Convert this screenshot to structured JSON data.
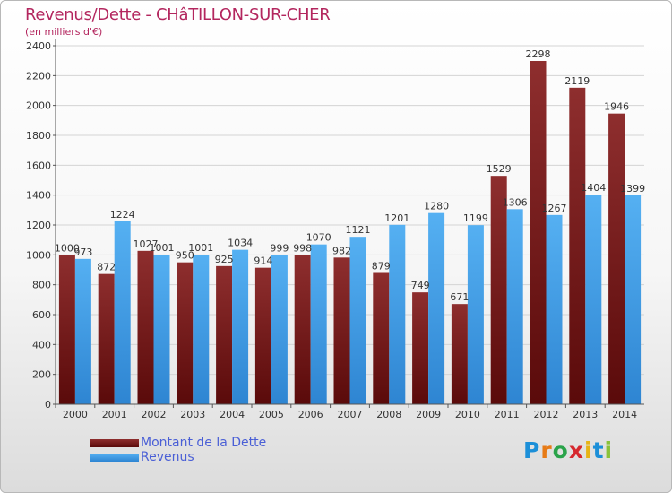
{
  "chart_data": {
    "type": "bar",
    "title": "Revenus/Dette - CHâTILLON-SUR-CHER",
    "subtitle": "(en milliers d'€)",
    "xlabel": "",
    "ylabel": "",
    "ylim": [
      0,
      2400
    ],
    "yticks": [
      0,
      200,
      400,
      600,
      800,
      1000,
      1200,
      1400,
      1600,
      1800,
      2000,
      2200,
      2400
    ],
    "grid": true,
    "legend_position": "bottom-left",
    "categories": [
      "2000",
      "2001",
      "2002",
      "2003",
      "2004",
      "2005",
      "2006",
      "2007",
      "2008",
      "2009",
      "2010",
      "2011",
      "2012",
      "2013",
      "2014"
    ],
    "series": [
      {
        "name": "Montant de la Dette",
        "color": "#7a1a1a",
        "values": [
          1000,
          872,
          1027,
          950,
          925,
          914,
          998,
          982,
          879,
          749,
          671,
          1529,
          2298,
          2119,
          1946
        ]
      },
      {
        "name": "Revenus",
        "color": "#3a9ae8",
        "values": [
          973,
          1224,
          1001,
          1001,
          1034,
          999,
          1070,
          1121,
          1201,
          1280,
          1199,
          1306,
          1267,
          1404,
          1399
        ]
      }
    ],
    "value_labels": [
      [
        "1000",
        "872",
        "1027",
        "950",
        "925",
        "914",
        "998",
        "982",
        "879",
        "749",
        "671",
        "1529",
        "2298",
        "2119",
        "1946"
      ],
      [
        "973",
        "1224",
        "1001",
        "1001",
        "1034",
        "999",
        "1070",
        "1121",
        "1201",
        "1280",
        "1199",
        "1306",
        "1267",
        "1404",
        "1399"
      ]
    ]
  },
  "logo": {
    "text": "Proxiti",
    "letters": [
      "P",
      "r",
      "o",
      "x",
      "i",
      "t",
      "i"
    ]
  }
}
